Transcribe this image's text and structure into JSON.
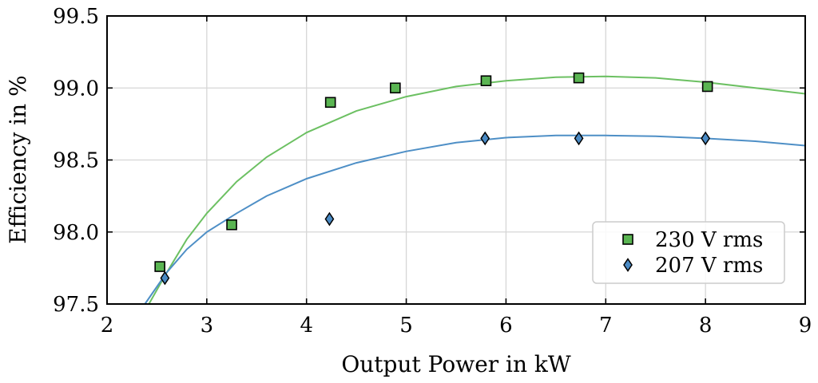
{
  "chart_data": {
    "type": "scatter",
    "xlabel": "Output Power in kW",
    "ylabel": "Efficiency in %",
    "xlim": [
      2,
      9
    ],
    "ylim": [
      97.5,
      99.5
    ],
    "xticks": [
      "2",
      "3",
      "4",
      "5",
      "6",
      "7",
      "8",
      "9"
    ],
    "yticks": [
      "97.5",
      "98.0",
      "98.5",
      "99.0",
      "99.5"
    ],
    "grid": true,
    "legend_position": "lower-right",
    "series": [
      {
        "name": "230 V rms",
        "marker": "square",
        "color": "#5ab552",
        "line_color": "#6cc062",
        "points": [
          [
            2.53,
            97.76
          ],
          [
            3.25,
            98.05
          ],
          [
            4.24,
            98.9
          ],
          [
            4.89,
            99.0
          ],
          [
            5.8,
            99.05
          ],
          [
            6.73,
            99.07
          ],
          [
            8.02,
            99.01
          ]
        ],
        "fit": [
          [
            2.42,
            97.5
          ],
          [
            2.6,
            97.72
          ],
          [
            2.8,
            97.95
          ],
          [
            3.0,
            98.13
          ],
          [
            3.3,
            98.35
          ],
          [
            3.6,
            98.52
          ],
          [
            4.0,
            98.69
          ],
          [
            4.5,
            98.84
          ],
          [
            5.0,
            98.94
          ],
          [
            5.5,
            99.01
          ],
          [
            6.0,
            99.05
          ],
          [
            6.5,
            99.075
          ],
          [
            7.0,
            99.08
          ],
          [
            7.5,
            99.07
          ],
          [
            8.0,
            99.04
          ],
          [
            8.5,
            99.0
          ],
          [
            9.0,
            98.96
          ]
        ]
      },
      {
        "name": "207 V rms",
        "marker": "diamond",
        "color": "#4a8ac4",
        "line_color": "#4e8fc6",
        "points": [
          [
            2.58,
            97.68
          ],
          [
            4.23,
            98.09
          ],
          [
            5.79,
            98.65
          ],
          [
            6.73,
            98.65
          ],
          [
            8.0,
            98.65
          ]
        ],
        "fit": [
          [
            2.38,
            97.5
          ],
          [
            2.6,
            97.72
          ],
          [
            2.8,
            97.88
          ],
          [
            3.0,
            98.0
          ],
          [
            3.3,
            98.13
          ],
          [
            3.6,
            98.25
          ],
          [
            4.0,
            98.37
          ],
          [
            4.5,
            98.48
          ],
          [
            5.0,
            98.56
          ],
          [
            5.5,
            98.62
          ],
          [
            6.0,
            98.655
          ],
          [
            6.5,
            98.67
          ],
          [
            7.0,
            98.67
          ],
          [
            7.5,
            98.665
          ],
          [
            8.0,
            98.65
          ],
          [
            8.5,
            98.63
          ],
          [
            9.0,
            98.6
          ]
        ]
      }
    ]
  }
}
